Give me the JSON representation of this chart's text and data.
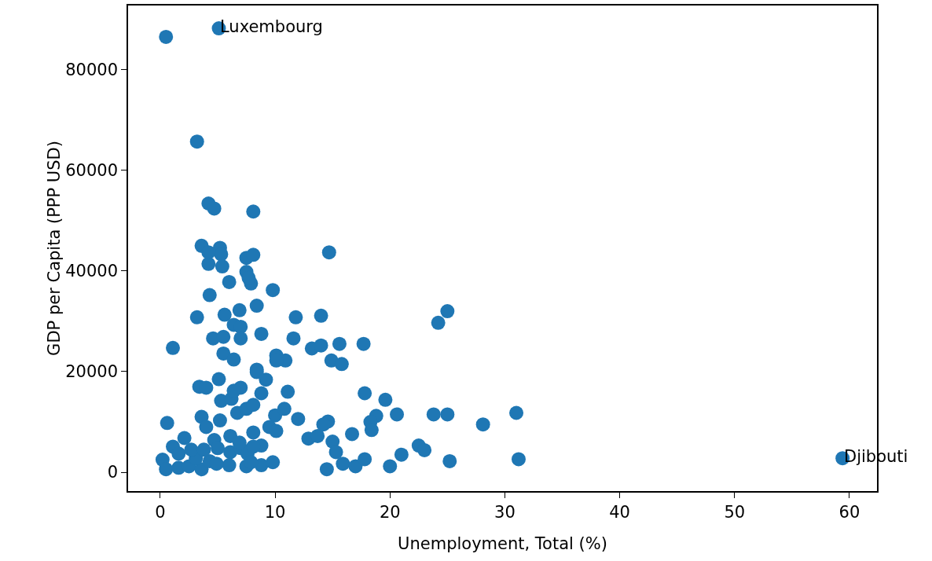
{
  "chart_data": {
    "type": "scatter",
    "xlabel": "Unemployment, Total (%)",
    "ylabel": "GDP per Capita (PPP USD)",
    "xlim": [
      -2.8,
      62.4
    ],
    "ylim": [
      -3735,
      92740
    ],
    "xticks": [
      0,
      10,
      20,
      30,
      40,
      50,
      60
    ],
    "yticks": [
      0,
      20000,
      40000,
      60000,
      80000
    ],
    "grid": false,
    "marker": "circle",
    "annotations": [
      {
        "text": "Luxembourg",
        "x": 5.1,
        "y": 88200
      },
      {
        "text": "Djibouti",
        "x": 59.4,
        "y": 2800
      }
    ],
    "series": [
      {
        "color": "#1f77b4",
        "x": [
          0.5,
          5.1,
          3.2,
          4.2,
          4.7,
          8.1,
          3.6,
          5.2,
          5.3,
          4.2,
          5.4,
          4.2,
          7.5,
          8.1,
          7.5,
          7.9,
          7.7,
          6.0,
          4.3,
          9.8,
          14.7,
          3.2,
          5.6,
          6.9,
          8.4,
          11.8,
          14.0,
          6.4,
          7.0,
          4.6,
          5.5,
          7.0,
          8.8,
          11.6,
          1.1,
          13.2,
          14.0,
          15.6,
          17.7,
          5.5,
          6.4,
          10.1,
          10.9,
          10.1,
          14.9,
          15.8,
          8.4,
          25.0,
          24.2,
          17.8,
          19.6,
          20.6,
          23.8,
          25.0,
          31.0,
          28.1,
          18.8,
          18.3,
          18.4,
          16.7,
          14.6,
          14.2,
          15.0,
          15.3,
          12.9,
          13.7,
          12.0,
          14.5,
          15.9,
          17.0,
          17.8,
          20.0,
          21.0,
          22.5,
          23.0,
          25.2,
          31.2,
          59.4,
          0.6,
          3.4,
          4.0,
          5.1,
          5.3,
          6.2,
          7.0,
          6.4,
          8.4,
          9.2,
          8.8,
          11.1,
          6.7,
          7.5,
          8.1,
          3.6,
          5.2,
          4.0,
          10.0,
          10.8,
          9.5,
          10.1,
          8.1,
          8.8,
          6.1,
          4.7,
          2.1,
          1.1,
          0.2,
          0.5,
          1.6,
          2.5,
          3.6,
          3.1,
          4.3,
          5.0,
          6.1,
          7.0,
          7.6,
          6.0,
          7.5,
          8.8,
          9.8,
          7.9,
          4.9,
          1.6,
          2.7,
          3.8,
          6.9,
          8.1
        ],
        "values": [
          86500,
          88200,
          65700,
          53400,
          52400,
          51800,
          45000,
          44600,
          43300,
          41400,
          40900,
          43700,
          42600,
          43200,
          39800,
          37500,
          38600,
          37800,
          35200,
          36200,
          43700,
          30800,
          31300,
          32200,
          33100,
          30800,
          31100,
          29300,
          28900,
          26600,
          26900,
          26600,
          27500,
          26600,
          24700,
          24600,
          25200,
          25500,
          25500,
          23600,
          22400,
          23200,
          22200,
          22200,
          22200,
          21500,
          20400,
          32000,
          29700,
          15700,
          14400,
          11500,
          11500,
          11500,
          11800,
          9500,
          11200,
          10000,
          8400,
          7600,
          10100,
          9500,
          6100,
          4000,
          6700,
          7200,
          10600,
          600,
          1700,
          1200,
          2600,
          1200,
          3500,
          5300,
          4400,
          2200,
          2600,
          2800,
          9800,
          17000,
          16800,
          18500,
          14200,
          14600,
          16800,
          16200,
          19900,
          18400,
          15700,
          16000,
          11800,
          12600,
          13400,
          11000,
          10300,
          9000,
          11300,
          12600,
          9000,
          8200,
          7900,
          5300,
          7200,
          6400,
          6800,
          5100,
          2500,
          600,
          900,
          1200,
          600,
          2800,
          2200,
          4800,
          4000,
          4800,
          3700,
          1400,
          1200,
          1400,
          2000,
          2000,
          1700,
          3700,
          4500,
          4500,
          5900,
          5100
        ]
      }
    ]
  }
}
